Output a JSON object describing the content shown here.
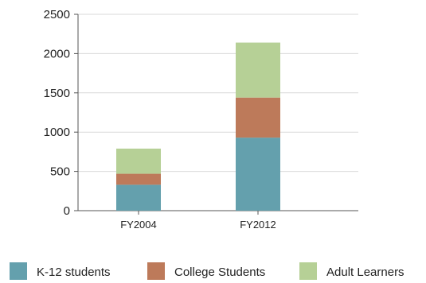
{
  "chart_data": {
    "type": "bar",
    "stacked": true,
    "categories": [
      "FY2004",
      "FY2012"
    ],
    "series": [
      {
        "name": "K-12 students",
        "values": [
          330,
          930
        ],
        "color": "#64a0ad"
      },
      {
        "name": "College Students",
        "values": [
          140,
          510
        ],
        "color": "#bd7a5a"
      },
      {
        "name": "Adult Learners",
        "values": [
          320,
          700
        ],
        "color": "#b6d096"
      }
    ],
    "yticks": [
      0,
      500,
      1000,
      1500,
      2000,
      2500
    ],
    "ylim": [
      0,
      2500
    ],
    "grid": true,
    "legend": "bottom"
  }
}
